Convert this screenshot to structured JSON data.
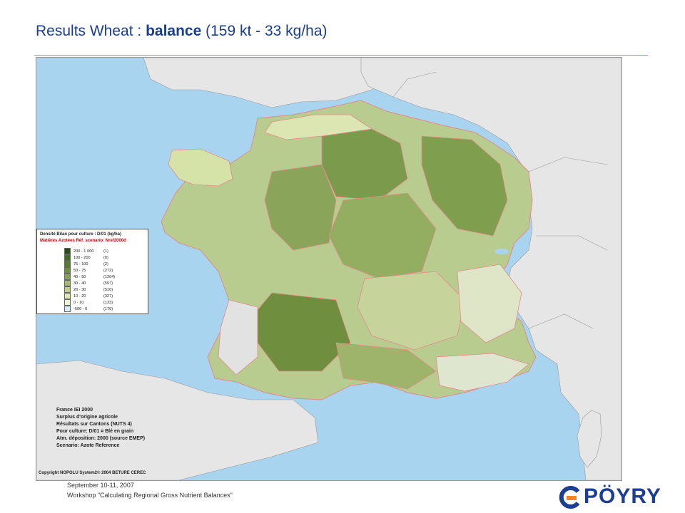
{
  "slide": {
    "title_prefix": "Results Wheat : ",
    "title_bold": "balance",
    "title_suffix": " (159 kt - 33 kg/ha)"
  },
  "legend": {
    "title": "Densité Bilan pour culture : D/01  (kg/ha)",
    "subtitle": "Matières Azotées  Réf. scenario: Nref2000d",
    "classes": [
      {
        "range": "200 - 1 000",
        "count": "(1)",
        "color": "#2d4a12"
      },
      {
        "range": "100 -   200",
        "count": "(0)",
        "color": "#3f6b1c"
      },
      {
        "range": "75 -   100",
        "count": "(2)",
        "color": "#557d2a"
      },
      {
        "range": "50 -    75",
        "count": "(272)",
        "color": "#6b8f3c"
      },
      {
        "range": "40 -    50",
        "count": "(1204)",
        "color": "#85a453"
      },
      {
        "range": "30 -    40",
        "count": "(557)",
        "color": "#a3b96d"
      },
      {
        "range": "20 -    30",
        "count": "(510)",
        "color": "#c0cf8c"
      },
      {
        "range": "10 -    20",
        "count": "(327)",
        "color": "#dce8b0"
      },
      {
        "range": "0 -    10",
        "count": "(133)",
        "color": "#eef5d3"
      },
      {
        "range": "-500 -     0",
        "count": "(170)",
        "color": "#d8eef4"
      }
    ]
  },
  "map_info": {
    "lines": [
      "France IEI 2000",
      "Surplus d'origine agricole",
      "Résultats sur Cantons (NUTS 4)",
      "Pour culture: D/01      ¤ Blé en grain",
      "Atm. déposition: 2000 (source EMEP)",
      "Scenario: Azote Reference"
    ],
    "copyright": "Copyright NOPOLU System2© 2004 BETURE CEREC"
  },
  "footer": {
    "date": "September 10-11, 2007",
    "workshop": "Workshop \"Calculating Regional Gross Nutrient Balances\""
  },
  "logo": {
    "text": "PÖYRY",
    "colors": {
      "blue": "#1c3f94",
      "orange": "#f08a1c"
    }
  },
  "map_colors": {
    "sea": "#a8d4f0",
    "foreign_land": "#e6e6e6",
    "border": "#e48a8a"
  }
}
